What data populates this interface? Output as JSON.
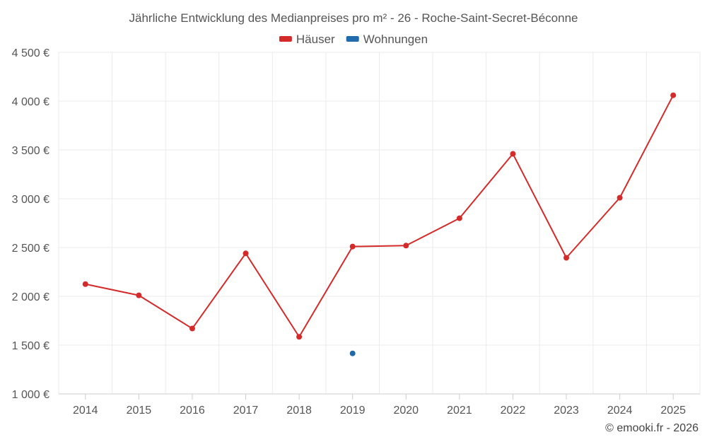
{
  "chart_data": {
    "type": "line",
    "title": "Jährliche Entwicklung des Medianpreises pro m² - 26 - Roche-Saint-Secret-Béconne",
    "categories": [
      "2014",
      "2015",
      "2016",
      "2017",
      "2018",
      "2019",
      "2020",
      "2021",
      "2022",
      "2023",
      "2024",
      "2025"
    ],
    "series": [
      {
        "name": "Häuser",
        "color": "#d42a2a",
        "values": [
          2125,
          2010,
          1670,
          2440,
          1585,
          2510,
          2520,
          2800,
          3460,
          2395,
          3010,
          4060
        ]
      },
      {
        "name": "Wohnungen",
        "color": "#1f6bab",
        "values": [
          null,
          null,
          null,
          null,
          null,
          1415,
          null,
          null,
          null,
          null,
          null,
          null
        ]
      }
    ],
    "ylim": [
      1000,
      4500
    ],
    "yticks": [
      1000,
      1500,
      2000,
      2500,
      3000,
      3500,
      4000,
      4500
    ],
    "ytick_labels": [
      "1 000 €",
      "1 500 €",
      "2 000 €",
      "2 500 €",
      "3 000 €",
      "3 500 €",
      "4 000 €",
      "4 500 €"
    ],
    "grid": true,
    "legend_position": "top-center"
  },
  "credit": "© emooki.fr - 2026"
}
